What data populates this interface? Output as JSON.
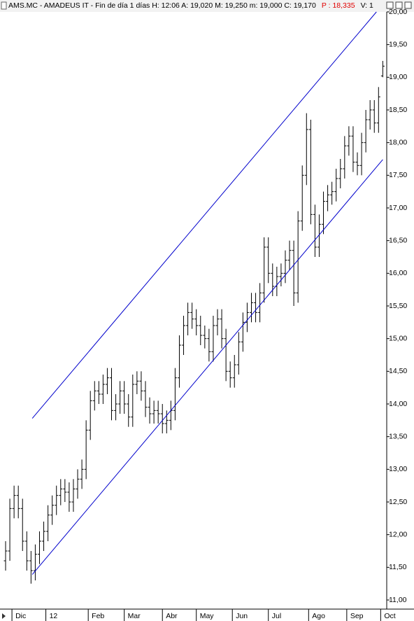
{
  "chart_data": {
    "type": "ohlc",
    "title": "AMS.MC - AMADEUS IT - Fin de día 1 días  H: 12:06  A: 19,020  M: 19,250  m: 19,000  C: 19,170",
    "annotations": [
      {
        "text": "P : 18,335",
        "color": "#e00000"
      },
      {
        "text": "V: 1",
        "color": "#000000"
      }
    ],
    "color": "#000000",
    "open": [
      11.6,
      11.75,
      12.4,
      12.6,
      12.4,
      11.9,
      11.6,
      11.45,
      11.7,
      11.9,
      12.05,
      12.3,
      12.45,
      12.6,
      12.7,
      12.65,
      12.5,
      12.7,
      12.85,
      13.0,
      13.6,
      14.05,
      14.2,
      14.15,
      14.3,
      14.4,
      13.9,
      14.0,
      14.2,
      14.0,
      13.8,
      14.3,
      14.35,
      14.2,
      13.95,
      13.85,
      13.9,
      13.85,
      13.7,
      13.75,
      13.9,
      14.4,
      14.9,
      15.2,
      15.4,
      15.3,
      15.2,
      15.05,
      15.0,
      14.8,
      15.2,
      15.3,
      15.0,
      14.5,
      14.4,
      14.6,
      14.95,
      15.25,
      15.4,
      15.55,
      15.4,
      15.7,
      16.4,
      16.0,
      15.8,
      15.95,
      16.0,
      16.2,
      16.35,
      15.7,
      16.8,
      17.5,
      18.2,
      16.9,
      16.4,
      16.75,
      17.1,
      17.2,
      17.25,
      17.45,
      17.6,
      17.95,
      18.1,
      17.7,
      17.65,
      18.0,
      18.35,
      18.5,
      18.3,
      19.02
    ],
    "high": [
      11.9,
      12.55,
      12.75,
      12.75,
      12.55,
      12.05,
      11.75,
      11.85,
      12.05,
      12.2,
      12.45,
      12.6,
      12.75,
      12.85,
      12.85,
      12.8,
      12.85,
      13.0,
      13.15,
      13.75,
      14.2,
      14.35,
      14.35,
      14.45,
      14.55,
      14.55,
      14.15,
      14.35,
      14.35,
      14.15,
      14.45,
      14.5,
      14.5,
      14.35,
      14.1,
      14.05,
      14.05,
      14.0,
      13.9,
      14.05,
      14.55,
      15.05,
      15.35,
      15.55,
      15.55,
      15.45,
      15.35,
      15.2,
      15.15,
      15.35,
      15.45,
      15.45,
      15.15,
      14.65,
      14.75,
      15.1,
      15.4,
      15.55,
      15.7,
      15.7,
      15.85,
      16.55,
      16.55,
      16.15,
      16.1,
      16.15,
      16.35,
      16.5,
      16.5,
      16.95,
      17.65,
      18.45,
      18.35,
      17.05,
      16.9,
      17.25,
      17.35,
      17.4,
      17.6,
      17.75,
      18.1,
      18.25,
      18.25,
      17.85,
      18.15,
      18.5,
      18.65,
      18.65,
      18.85,
      19.25
    ],
    "low": [
      11.45,
      11.6,
      12.25,
      12.25,
      11.75,
      11.45,
      11.25,
      11.3,
      11.55,
      11.75,
      11.9,
      12.15,
      12.3,
      12.45,
      12.5,
      12.35,
      12.35,
      12.55,
      12.7,
      12.85,
      13.45,
      13.9,
      14.0,
      14.0,
      14.15,
      13.75,
      13.75,
      13.85,
      13.85,
      13.65,
      13.65,
      14.15,
      14.05,
      13.8,
      13.7,
      13.7,
      13.7,
      13.55,
      13.55,
      13.6,
      13.75,
      14.25,
      14.75,
      15.05,
      15.15,
      15.05,
      14.9,
      14.85,
      14.65,
      14.65,
      15.05,
      14.85,
      14.35,
      14.25,
      14.25,
      14.45,
      14.8,
      15.1,
      15.25,
      15.25,
      15.25,
      15.55,
      15.85,
      15.65,
      15.65,
      15.8,
      15.85,
      16.05,
      15.5,
      15.55,
      16.65,
      17.35,
      16.75,
      16.25,
      16.25,
      16.6,
      16.95,
      17.05,
      17.1,
      17.3,
      17.45,
      17.8,
      17.55,
      17.5,
      17.5,
      17.85,
      18.2,
      18.15,
      18.15,
      19.0
    ],
    "close": [
      11.75,
      12.4,
      12.6,
      12.4,
      11.9,
      11.6,
      11.45,
      11.7,
      11.9,
      12.05,
      12.3,
      12.45,
      12.6,
      12.7,
      12.65,
      12.5,
      12.7,
      12.85,
      13.0,
      13.6,
      14.05,
      14.2,
      14.15,
      14.3,
      14.4,
      13.9,
      14.0,
      14.2,
      14.0,
      13.8,
      14.3,
      14.35,
      14.2,
      13.95,
      13.85,
      13.9,
      13.85,
      13.7,
      13.75,
      13.9,
      14.4,
      14.9,
      15.2,
      15.4,
      15.3,
      15.2,
      15.05,
      15.0,
      14.8,
      15.2,
      15.3,
      15.0,
      14.5,
      14.4,
      14.6,
      14.95,
      15.25,
      15.4,
      15.55,
      15.4,
      15.7,
      16.4,
      16.0,
      15.8,
      15.95,
      16.0,
      16.2,
      16.35,
      15.7,
      16.8,
      17.5,
      18.2,
      16.9,
      16.4,
      16.75,
      17.1,
      17.2,
      17.25,
      17.45,
      17.6,
      17.95,
      18.1,
      17.7,
      17.65,
      18.0,
      18.35,
      18.5,
      18.3,
      18.7,
      19.17
    ],
    "channels": [
      {
        "color": "#0000cc",
        "x": [
          6.3,
          87.5
        ],
        "y": [
          13.78,
          20.0
        ]
      },
      {
        "color": "#0000cc",
        "x": [
          6.3,
          89
        ],
        "y": [
          11.39,
          17.74
        ]
      }
    ],
    "xlim": [
      -1.32,
      89.93
    ],
    "xticks": [
      {
        "value": 1.5,
        "label": "Dic"
      },
      {
        "value": 9.5,
        "label": "12"
      },
      {
        "value": 19.5,
        "label": "Feb"
      },
      {
        "value": 28,
        "label": "Mar"
      },
      {
        "value": 37,
        "label": "Abr"
      },
      {
        "value": 45,
        "label": "May"
      },
      {
        "value": 53.5,
        "label": "Jun"
      },
      {
        "value": 62,
        "label": "Jul"
      },
      {
        "value": 71.5,
        "label": "Ago"
      },
      {
        "value": 80.5,
        "label": "Sep"
      },
      {
        "value": 88.5,
        "label": "Oct"
      }
    ],
    "ylim": [
      11,
      20
    ],
    "yticks": [
      {
        "value": 11,
        "label": "11,00"
      },
      {
        "value": 11.5,
        "label": "11,50"
      },
      {
        "value": 12,
        "label": "12,00"
      },
      {
        "value": 12.5,
        "label": "12,50"
      },
      {
        "value": 13,
        "label": "13,00"
      },
      {
        "value": 13.5,
        "label": "13,50"
      },
      {
        "value": 14,
        "label": "14,00"
      },
      {
        "value": 14.5,
        "label": "14,50"
      },
      {
        "value": 15,
        "label": "15,00"
      },
      {
        "value": 15.5,
        "label": "15,50"
      },
      {
        "value": 16,
        "label": "16,00"
      },
      {
        "value": 16.5,
        "label": "16,50"
      },
      {
        "value": 17,
        "label": "17,00"
      },
      {
        "value": 17.5,
        "label": "17,50"
      },
      {
        "value": 18,
        "label": "18,00"
      },
      {
        "value": 18.5,
        "label": "18,50"
      },
      {
        "value": 19,
        "label": "19,00"
      },
      {
        "value": 19.5,
        "label": "19,50"
      },
      {
        "value": 20,
        "label": "20,00"
      }
    ]
  }
}
